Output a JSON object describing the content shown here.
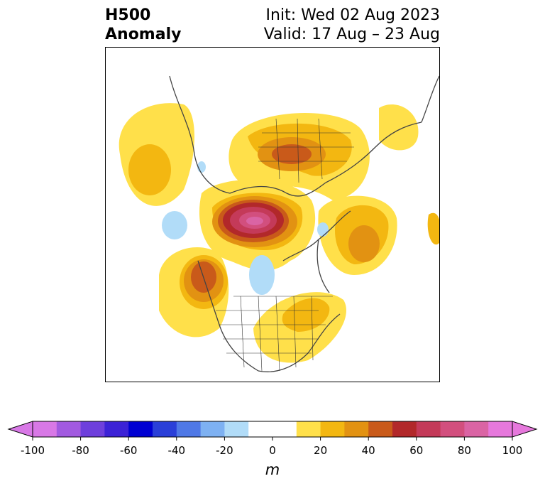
{
  "title": {
    "left_line1": "H500",
    "left_line2": "Anomaly",
    "right_line1": "Init: Wed 02 Aug 2023",
    "right_line2": "Valid: 17 Aug – 23 Aug"
  },
  "colorbar": {
    "unit": "m",
    "ticks": [
      "-100",
      "-80",
      "-60",
      "-40",
      "-20",
      "0",
      "20",
      "40",
      "60",
      "80",
      "100"
    ],
    "levels": [
      -100,
      -90,
      -80,
      -70,
      -60,
      -50,
      -40,
      -30,
      -20,
      -10,
      10,
      20,
      30,
      40,
      50,
      60,
      70,
      80,
      90,
      100
    ],
    "colors": {
      "under": "#d878e6",
      "over": "#e678dc",
      "bins": [
        "#d878e6",
        "#a25ae0",
        "#6e3fdc",
        "#3c22d6",
        "#0000d2",
        "#2a3fd8",
        "#4f78e6",
        "#7eb1f2",
        "#b1dcf8",
        "#ffffff",
        "#ffe04a",
        "#f3b711",
        "#e29212",
        "#c95a1a",
        "#b2282a",
        "#c43a59",
        "#d24f7e",
        "#da64a4",
        "#e678dc"
      ]
    }
  }
}
